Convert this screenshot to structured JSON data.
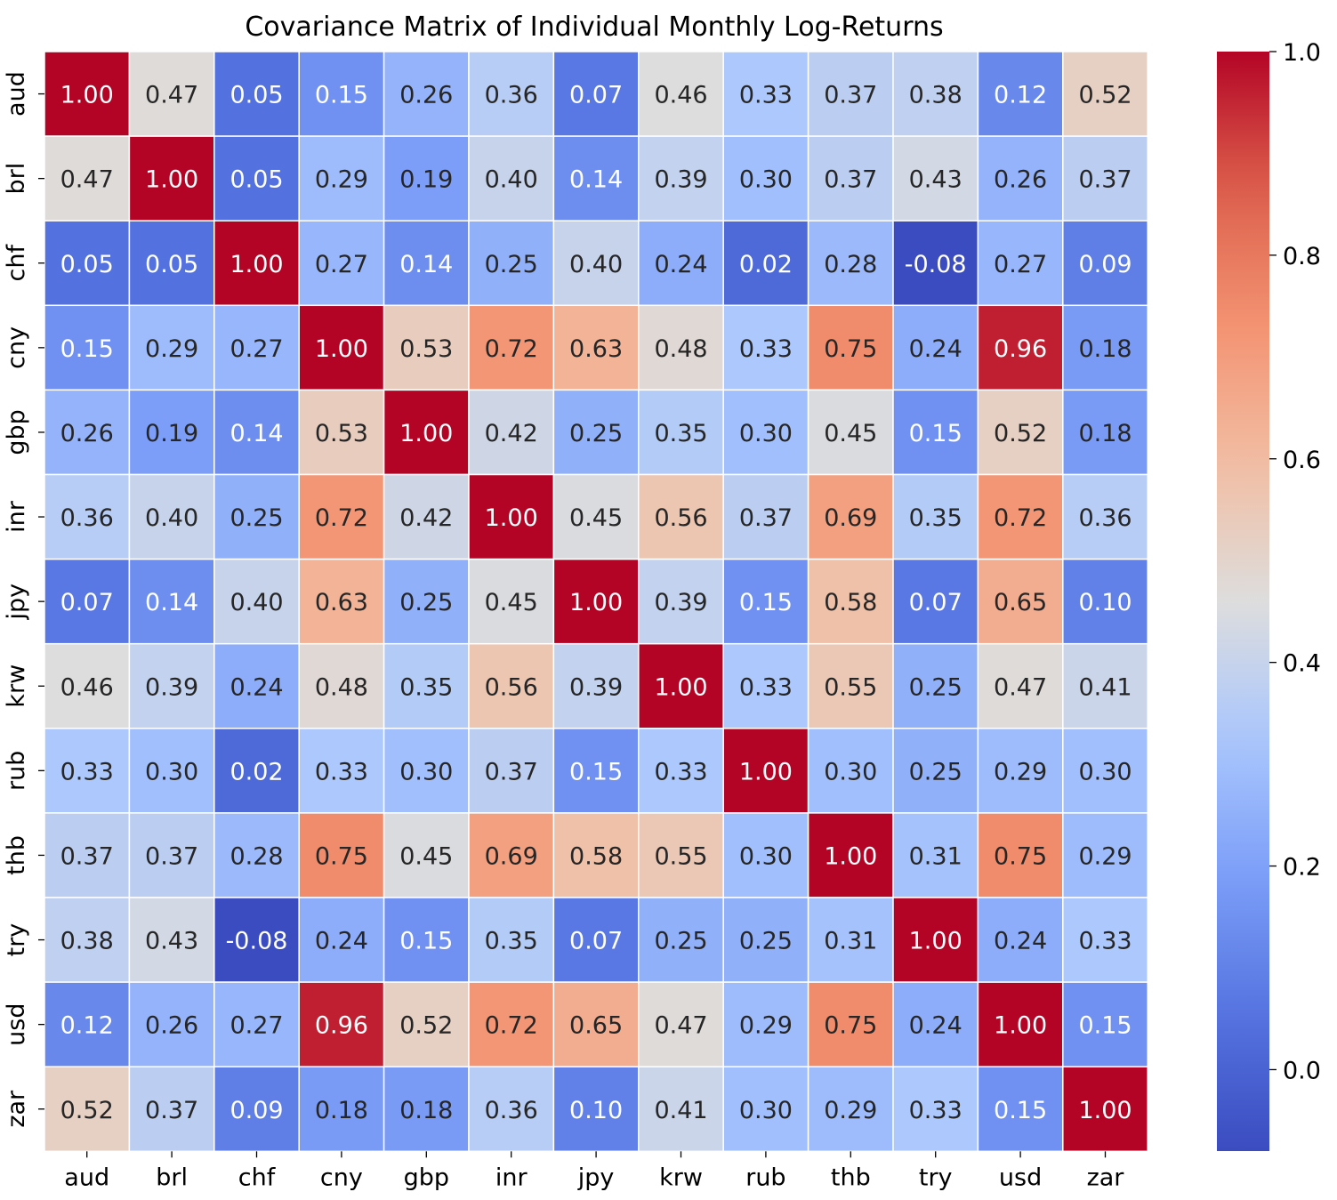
{
  "chart_data": {
    "type": "heatmap",
    "title": "Covariance Matrix of Individual Monthly Log-Returns",
    "xlabel": "",
    "ylabel": "",
    "categories": [
      "aud",
      "brl",
      "chf",
      "cny",
      "gbp",
      "inr",
      "jpy",
      "krw",
      "rub",
      "thb",
      "try",
      "usd",
      "zar"
    ],
    "values": [
      [
        1.0,
        0.47,
        0.05,
        0.15,
        0.26,
        0.36,
        0.07,
        0.46,
        0.33,
        0.37,
        0.38,
        0.12,
        0.52
      ],
      [
        0.47,
        1.0,
        0.05,
        0.29,
        0.19,
        0.4,
        0.14,
        0.39,
        0.3,
        0.37,
        0.43,
        0.26,
        0.37
      ],
      [
        0.05,
        0.05,
        1.0,
        0.27,
        0.14,
        0.25,
        0.4,
        0.24,
        0.02,
        0.28,
        -0.08,
        0.27,
        0.09
      ],
      [
        0.15,
        0.29,
        0.27,
        1.0,
        0.53,
        0.72,
        0.63,
        0.48,
        0.33,
        0.75,
        0.24,
        0.96,
        0.18
      ],
      [
        0.26,
        0.19,
        0.14,
        0.53,
        1.0,
        0.42,
        0.25,
        0.35,
        0.3,
        0.45,
        0.15,
        0.52,
        0.18
      ],
      [
        0.36,
        0.4,
        0.25,
        0.72,
        0.42,
        1.0,
        0.45,
        0.56,
        0.37,
        0.69,
        0.35,
        0.72,
        0.36
      ],
      [
        0.07,
        0.14,
        0.4,
        0.63,
        0.25,
        0.45,
        1.0,
        0.39,
        0.15,
        0.58,
        0.07,
        0.65,
        0.1
      ],
      [
        0.46,
        0.39,
        0.24,
        0.48,
        0.35,
        0.56,
        0.39,
        1.0,
        0.33,
        0.55,
        0.25,
        0.47,
        0.41
      ],
      [
        0.33,
        0.3,
        0.02,
        0.33,
        0.3,
        0.37,
        0.15,
        0.33,
        1.0,
        0.3,
        0.25,
        0.29,
        0.3
      ],
      [
        0.37,
        0.37,
        0.28,
        0.75,
        0.45,
        0.69,
        0.58,
        0.55,
        0.3,
        1.0,
        0.31,
        0.75,
        0.29
      ],
      [
        0.38,
        0.43,
        -0.08,
        0.24,
        0.15,
        0.35,
        0.07,
        0.25,
        0.25,
        0.31,
        1.0,
        0.24,
        0.33
      ],
      [
        0.12,
        0.26,
        0.27,
        0.96,
        0.52,
        0.72,
        0.65,
        0.47,
        0.29,
        0.75,
        0.24,
        1.0,
        0.15
      ],
      [
        0.52,
        0.37,
        0.09,
        0.18,
        0.18,
        0.36,
        0.1,
        0.41,
        0.3,
        0.29,
        0.33,
        0.15,
        1.0
      ]
    ],
    "value_range": [
      -0.08,
      1.0
    ],
    "colormap": "coolwarm",
    "annotation_format": "0.00",
    "colorbar": {
      "ticks": [
        0.0,
        0.2,
        0.4,
        0.6,
        0.8,
        1.0
      ],
      "tick_labels": [
        "0.0",
        "0.2",
        "0.4",
        "0.6",
        "0.8",
        "1.0"
      ]
    },
    "grid": false
  }
}
